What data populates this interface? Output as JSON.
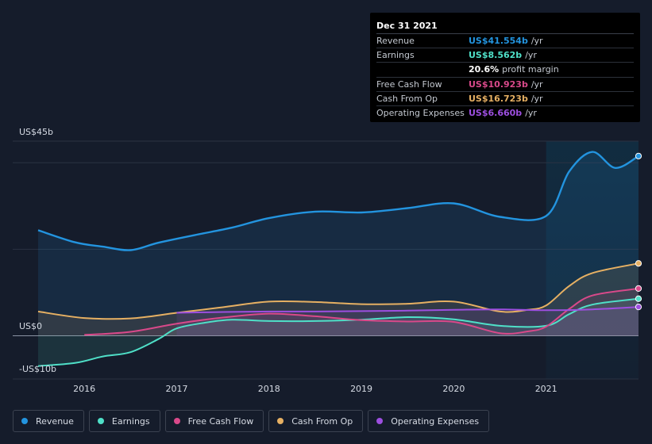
{
  "chart_data": {
    "type": "area",
    "title": "",
    "xlabel": "",
    "ylabel": "",
    "y_tick_labels": {
      "top": "US$45b",
      "zero": "US$0",
      "bottom": "-US$10b"
    },
    "ylim": [
      -10,
      45
    ],
    "xlim": [
      2015.5,
      2022.0
    ],
    "x_ticks": [
      2016,
      2017,
      2018,
      2019,
      2020,
      2021
    ],
    "x_tick_labels": [
      "2016",
      "2017",
      "2018",
      "2019",
      "2020",
      "2021"
    ],
    "highlight_from": 2021.0,
    "series": [
      {
        "name": "Revenue",
        "color": "#2394df",
        "x": [
          2015.5,
          2015.9,
          2016.2,
          2016.5,
          2016.8,
          2017.2,
          2017.6,
          2018.0,
          2018.5,
          2019.0,
          2019.5,
          2020.0,
          2020.5,
          2021.0,
          2021.25,
          2021.5,
          2021.75,
          2022.0
        ],
        "y": [
          24.4,
          21.6,
          20.6,
          19.8,
          21.5,
          23.3,
          25.0,
          27.2,
          28.7,
          28.5,
          29.5,
          30.6,
          27.5,
          27.7,
          38.0,
          42.5,
          38.8,
          41.554
        ]
      },
      {
        "name": "Earnings",
        "color": "#4fe0c8",
        "x": [
          2015.5,
          2015.9,
          2016.2,
          2016.5,
          2016.8,
          2017.0,
          2017.3,
          2017.6,
          2018.0,
          2018.5,
          2019.0,
          2019.5,
          2020.0,
          2020.5,
          2021.0,
          2021.25,
          2021.5,
          2022.0
        ],
        "y": [
          -7.0,
          -6.3,
          -4.8,
          -3.8,
          -0.8,
          1.7,
          3.0,
          3.7,
          3.4,
          3.4,
          3.7,
          4.3,
          3.8,
          2.3,
          2.3,
          5.0,
          7.2,
          8.562
        ]
      },
      {
        "name": "Free Cash Flow",
        "color": "#d9498a",
        "x": [
          2016.0,
          2016.5,
          2017.0,
          2017.5,
          2018.0,
          2018.5,
          2019.0,
          2019.5,
          2020.0,
          2020.5,
          2020.8,
          2021.0,
          2021.25,
          2021.5,
          2022.0
        ],
        "y": [
          0.2,
          0.9,
          2.8,
          4.2,
          5.1,
          4.5,
          3.6,
          3.3,
          3.2,
          0.6,
          1.0,
          2.1,
          6.2,
          9.3,
          10.923
        ]
      },
      {
        "name": "Cash From Op",
        "color": "#e6b063",
        "x": [
          2015.5,
          2016.0,
          2016.5,
          2017.0,
          2017.5,
          2018.0,
          2018.5,
          2019.0,
          2019.5,
          2020.0,
          2020.5,
          2020.8,
          2021.0,
          2021.25,
          2021.5,
          2022.0
        ],
        "y": [
          5.6,
          4.1,
          4.0,
          5.3,
          6.6,
          7.9,
          7.8,
          7.3,
          7.4,
          7.9,
          5.6,
          6.0,
          7.0,
          11.5,
          14.5,
          16.723
        ]
      },
      {
        "name": "Operating Expenses",
        "color": "#9d4fe0",
        "x": [
          2017.0,
          2017.5,
          2018.0,
          2018.5,
          2019.0,
          2019.5,
          2020.0,
          2020.5,
          2021.0,
          2021.5,
          2022.0
        ],
        "y": [
          5.3,
          5.5,
          5.6,
          5.6,
          5.7,
          5.8,
          6.0,
          6.1,
          5.9,
          6.1,
          6.66
        ]
      }
    ]
  },
  "tooltip": {
    "date": "Dec 31 2021",
    "rows": [
      {
        "label": "Revenue",
        "value": "US$41.554b",
        "unit": "/yr",
        "color": "#2394df"
      },
      {
        "label": "Earnings",
        "value": "US$8.562b",
        "unit": "/yr",
        "color": "#4fe0c8"
      },
      {
        "label": "",
        "value": "20.6%",
        "unit": "profit margin",
        "color": "#ffffff"
      },
      {
        "label": "Free Cash Flow",
        "value": "US$10.923b",
        "unit": "/yr",
        "color": "#d9498a"
      },
      {
        "label": "Cash From Op",
        "value": "US$16.723b",
        "unit": "/yr",
        "color": "#e6b063"
      },
      {
        "label": "Operating Expenses",
        "value": "US$6.660b",
        "unit": "/yr",
        "color": "#9d4fe0"
      }
    ]
  },
  "legend": [
    {
      "label": "Revenue",
      "color": "#2394df"
    },
    {
      "label": "Earnings",
      "color": "#4fe0c8"
    },
    {
      "label": "Free Cash Flow",
      "color": "#d9498a"
    },
    {
      "label": "Cash From Op",
      "color": "#e6b063"
    },
    {
      "label": "Operating Expenses",
      "color": "#9d4fe0"
    }
  ]
}
